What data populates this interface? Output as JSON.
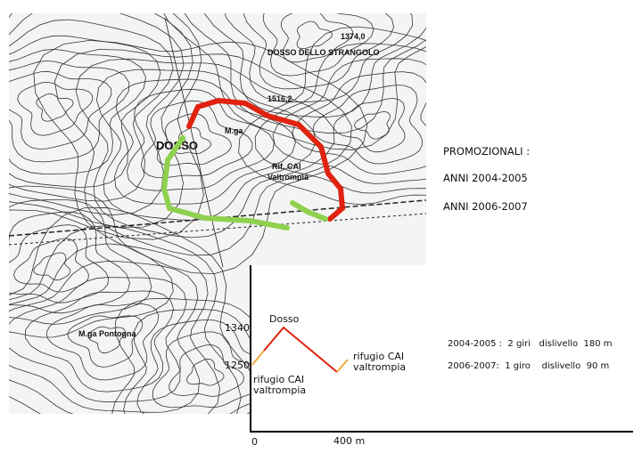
{
  "map": {
    "labels": [
      "DOSSO DELLO STRANGOLO",
      "1374,0",
      "1516,2",
      "DOSSO",
      "M.ga",
      "Rif. CAI",
      "Valtrompia",
      "M.ga Pontogna"
    ]
  },
  "legend": {
    "title": "PROMOZIONALI :",
    "items": [
      "ANNI 2004-2005",
      "ANNI 2006-2007"
    ]
  },
  "profile": {
    "y_labels": [
      "1340",
      "1250"
    ],
    "x_labels": [
      "0",
      "400 m"
    ],
    "peak": "Dosso",
    "start": [
      "rifugio CAI",
      "valtrompia"
    ],
    "end": [
      "rifugio CAI",
      "valtrompia"
    ]
  },
  "notes": [
    "2004-2005 :  2 giri   dislivello  180 m",
    "2006-2007:  1 giro    dislivello  90 m"
  ]
}
